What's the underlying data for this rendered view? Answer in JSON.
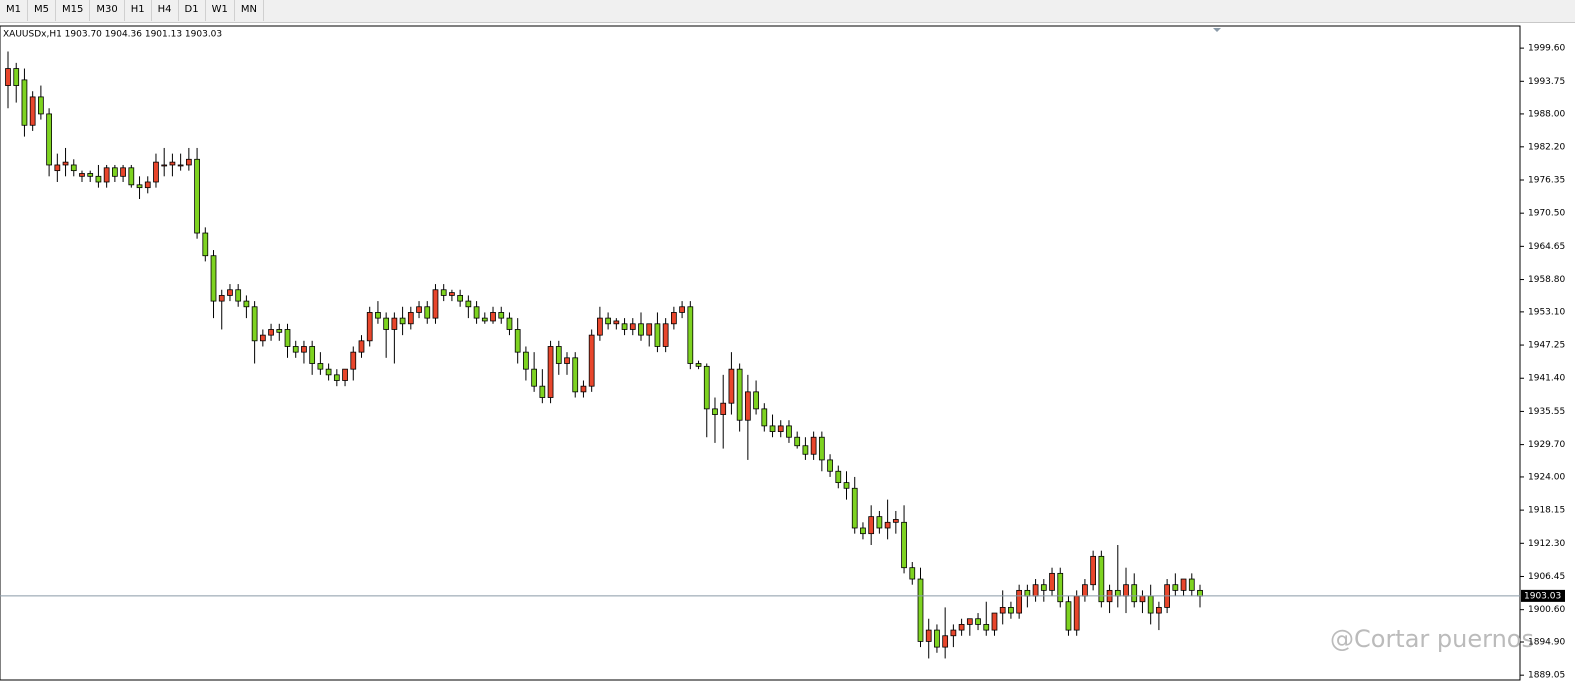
{
  "toolbar": [
    "M1",
    "M5",
    "M15",
    "M30",
    "H1",
    "H4",
    "D1",
    "W1",
    "MN"
  ],
  "watermark": "@Cortar puernos",
  "chart_data": {
    "type": "candlestick",
    "title": "XAUUSDx,H1  1903.70 1904.36 1901.13 1903.03",
    "up_color": "#e8462c",
    "down_color": "#7ed321",
    "price_line_color": "#8a9aa8",
    "current_price": 1903.03,
    "ylim": [
      1888.2,
      2003.5
    ],
    "yticks": [
      {
        "value": 1999.6,
        "label": "1999.60"
      },
      {
        "value": 1993.75,
        "label": "1993.75"
      },
      {
        "value": 1988.0,
        "label": "1988.00"
      },
      {
        "value": 1982.2,
        "label": "1982.20"
      },
      {
        "value": 1976.35,
        "label": "1976.35"
      },
      {
        "value": 1970.5,
        "label": "1970.50"
      },
      {
        "value": 1964.65,
        "label": "1964.65"
      },
      {
        "value": 1958.8,
        "label": "1958.80"
      },
      {
        "value": 1953.1,
        "label": "1953.10"
      },
      {
        "value": 1947.25,
        "label": "1947.25"
      },
      {
        "value": 1941.4,
        "label": "1941.40"
      },
      {
        "value": 1935.55,
        "label": "1935.55"
      },
      {
        "value": 1929.7,
        "label": "1929.70"
      },
      {
        "value": 1924.0,
        "label": "1924.00"
      },
      {
        "value": 1918.15,
        "label": "1918.15"
      },
      {
        "value": 1912.3,
        "label": "1912.30"
      },
      {
        "value": 1906.45,
        "label": "1906.45"
      },
      {
        "value": 1900.6,
        "label": "1900.60"
      },
      {
        "value": 1894.9,
        "label": "1894.90"
      },
      {
        "value": 1889.05,
        "label": "1889.05"
      }
    ],
    "open": [
      1993,
      1996,
      1994,
      1986,
      1991,
      1988,
      1978,
      1979,
      1979,
      1977,
      1977.5,
      1977,
      1976,
      1978.5,
      1977,
      1978.5,
      1975.5,
      1975,
      1976,
      1979,
      1979,
      1979,
      1979,
      1980,
      1967,
      1963,
      1955,
      1956,
      1957,
      1955,
      1954,
      1948,
      1949,
      1950,
      1950,
      1947,
      1946,
      1947,
      1944,
      1943,
      1942,
      1941,
      1943,
      1946,
      1948,
      1953,
      1952,
      1950,
      1952,
      1951,
      1953,
      1954,
      1952,
      1957,
      1956,
      1956,
      1955,
      1954,
      1952,
      1951.5,
      1953,
      1952,
      1950,
      1946,
      1943,
      1940,
      1938,
      1947,
      1944,
      1945,
      1939,
      1940,
      1949,
      1952,
      1951,
      1951,
      1950,
      1951,
      1949,
      1951,
      1947,
      1951,
      1953,
      1954,
      1944,
      1943.5,
      1936,
      1935,
      1937,
      1943,
      1934,
      1939,
      1936,
      1933,
      1932,
      1933,
      1931,
      1929.5,
      1928,
      1931,
      1927,
      1925,
      1923,
      1922,
      1915,
      1914,
      1917,
      1915,
      1916,
      1916,
      1908,
      1906,
      1895,
      1897,
      1894,
      1896,
      1897,
      1898,
      1899,
      1898,
      1897,
      1900,
      1901,
      1900,
      1904,
      1903,
      1905,
      1904,
      1907,
      1902,
      1897,
      1903,
      1905,
      1910,
      1902,
      1904,
      1903,
      1905,
      1902,
      1903,
      1900,
      1901,
      1905,
      1904,
      1906,
      1904
    ],
    "high": [
      1999,
      1997,
      1996,
      1992,
      1993,
      1989,
      1981,
      1982,
      1980,
      1978,
      1978,
      1979,
      1979,
      1979,
      1979,
      1979,
      1977,
      1977,
      1981,
      1982,
      1981,
      1981,
      1982,
      1982,
      1968,
      1964,
      1957,
      1958,
      1958,
      1956,
      1955,
      1950,
      1951,
      1951,
      1951,
      1948,
      1948,
      1948,
      1946,
      1944,
      1943,
      1943,
      1947,
      1949,
      1954,
      1955,
      1953,
      1953,
      1954,
      1954,
      1955,
      1955,
      1958,
      1958,
      1957,
      1957,
      1956,
      1955,
      1953,
      1954,
      1954,
      1953,
      1952,
      1947,
      1946,
      1943,
      1948,
      1948,
      1946,
      1946,
      1941,
      1950,
      1954,
      1953,
      1952,
      1952,
      1952,
      1953,
      1951,
      1953,
      1952,
      1954,
      1955,
      1955,
      1944.5,
      1944,
      1938,
      1942,
      1946,
      1944,
      1942,
      1941,
      1937,
      1935,
      1934,
      1934,
      1932,
      1931,
      1932,
      1932,
      1928,
      1926,
      1925,
      1924,
      1916,
      1919,
      1918,
      1920,
      1918,
      1919,
      1909,
      1908,
      1899,
      1898,
      1901,
      1898,
      1899,
      1899,
      1900,
      1902,
      1900,
      1904,
      1902,
      1905,
      1905,
      1906,
      1906,
      1908,
      1908,
      1903,
      1904,
      1906,
      1911,
      1911,
      1905,
      1912,
      1908,
      1907,
      1904,
      1905,
      1902,
      1906,
      1907,
      1906,
      1907,
      1905
    ],
    "low": [
      1989,
      1990,
      1984,
      1985,
      1987,
      1977,
      1976,
      1977,
      1977,
      1976,
      1976,
      1975,
      1975,
      1976,
      1976,
      1975,
      1973,
      1974,
      1975,
      1977,
      1977,
      1978,
      1978,
      1966,
      1962,
      1952,
      1950,
      1955,
      1954,
      1952,
      1944,
      1947,
      1948,
      1948,
      1945,
      1945,
      1944,
      1942,
      1942,
      1941,
      1940,
      1940,
      1941,
      1945,
      1947,
      1951,
      1945,
      1944,
      1949,
      1950,
      1952,
      1951,
      1951,
      1955,
      1955,
      1954,
      1952,
      1951,
      1951,
      1951,
      1951,
      1949,
      1944,
      1941,
      1939,
      1937,
      1937,
      1942,
      1942,
      1938,
      1938,
      1939,
      1948,
      1950,
      1950,
      1949,
      1949,
      1948,
      1947,
      1946,
      1946,
      1950,
      1952,
      1943,
      1943,
      1931,
      1930,
      1929,
      1935,
      1932,
      1927,
      1935,
      1932,
      1931,
      1931,
      1930,
      1929,
      1927,
      1927,
      1925,
      1924,
      1922,
      1920,
      1914,
      1913,
      1912,
      1914,
      1913,
      1914,
      1907,
      1905,
      1894,
      1892,
      1893,
      1892,
      1894,
      1896,
      1896,
      1897,
      1896,
      1896,
      1898,
      1899,
      1899,
      1901,
      1902,
      1902,
      1903,
      1901,
      1896,
      1896,
      1902,
      1904,
      1901,
      1900,
      1901,
      1900,
      1901,
      1900,
      1898,
      1897,
      1900,
      1903,
      1903,
      1903,
      1901
    ],
    "close": [
      1996,
      1993,
      1986,
      1991,
      1988,
      1979,
      1979,
      1979.5,
      1978,
      1977.5,
      1977,
      1976,
      1978.5,
      1977,
      1978.5,
      1975.5,
      1975,
      1976,
      1979.5,
      1979,
      1979.5,
      1979,
      1980,
      1967,
      1963,
      1955,
      1956,
      1957,
      1955,
      1954,
      1948,
      1949,
      1950,
      1949.5,
      1947,
      1946,
      1947,
      1944,
      1943,
      1942,
      1941,
      1943,
      1946,
      1948,
      1953,
      1952,
      1950,
      1952,
      1951,
      1953,
      1954,
      1952,
      1957,
      1956,
      1956.5,
      1955,
      1954,
      1952,
      1951.5,
      1953,
      1952,
      1950,
      1946,
      1943,
      1940,
      1938,
      1947,
      1944,
      1945,
      1939,
      1940,
      1949,
      1952,
      1951,
      1951.5,
      1950,
      1951,
      1949,
      1951,
      1947,
      1951,
      1953,
      1954,
      1944,
      1943.5,
      1936,
      1935,
      1937,
      1943,
      1934,
      1939,
      1936,
      1933,
      1932,
      1933,
      1931,
      1929.5,
      1928,
      1931,
      1927,
      1925,
      1923,
      1922,
      1915,
      1914,
      1917,
      1915,
      1916,
      1916.5,
      1908,
      1906,
      1895,
      1897,
      1894,
      1896,
      1897,
      1898,
      1899,
      1898,
      1897,
      1900,
      1901,
      1900,
      1904,
      1903,
      1905,
      1904,
      1907,
      1902,
      1897,
      1903,
      1905,
      1910,
      1902,
      1904,
      1903,
      1905,
      1902,
      1903,
      1900,
      1901,
      1905,
      1904,
      1906,
      1904,
      1903
    ]
  }
}
